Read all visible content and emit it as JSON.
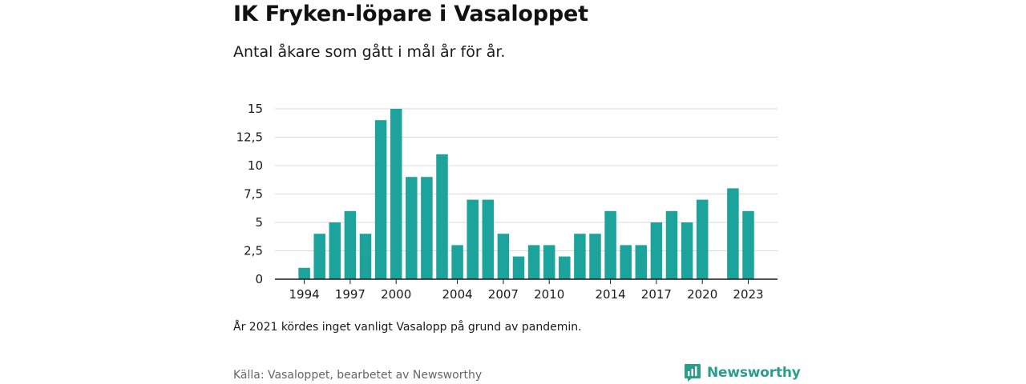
{
  "header": {
    "title": "IK Fryken-löpare i Vasaloppet",
    "subtitle": "Antal åkare som gått i mål år för år."
  },
  "note": "År 2021 kördes inget vanligt Vasalopp på grund av pandemin.",
  "source": "Källa: Vasaloppet, bearbetet av Newsworthy",
  "logo": {
    "text": "Newsworthy",
    "icon": "newsworthy-logo-icon"
  },
  "colors": {
    "bar": "#1ba39c",
    "grid": "#d9d9d9",
    "axis": "#1a1a1a",
    "logo": "#2a9d8f"
  },
  "chart_data": {
    "type": "bar",
    "title": "IK Fryken-löpare i Vasaloppet",
    "subtitle": "Antal åkare som gått i mål år för år.",
    "xlabel": "",
    "ylabel": "",
    "categories": [
      1993,
      1994,
      1995,
      1996,
      1997,
      1998,
      1999,
      2000,
      2001,
      2002,
      2003,
      2004,
      2005,
      2006,
      2007,
      2008,
      2009,
      2010,
      2011,
      2012,
      2013,
      2014,
      2015,
      2016,
      2017,
      2018,
      2019,
      2020,
      2021,
      2022,
      2023
    ],
    "values": [
      0,
      1,
      4,
      5,
      6,
      4,
      14,
      15,
      9,
      9,
      11,
      3,
      7,
      7,
      4,
      2,
      3,
      3,
      2,
      4,
      4,
      6,
      3,
      3,
      5,
      6,
      5,
      7,
      null,
      8,
      6
    ],
    "x_tick_labels": [
      "1994",
      "1997",
      "2000",
      "2004",
      "2007",
      "2010",
      "2014",
      "2017",
      "2020",
      "2023"
    ],
    "y_ticks": [
      0,
      2.5,
      5,
      7.5,
      10,
      12.5,
      15
    ],
    "y_tick_labels": [
      "0",
      "2,5",
      "5",
      "7,5",
      "10",
      "12,5",
      "15"
    ],
    "ylim": [
      0,
      15
    ],
    "grid": true,
    "legend": "none"
  }
}
